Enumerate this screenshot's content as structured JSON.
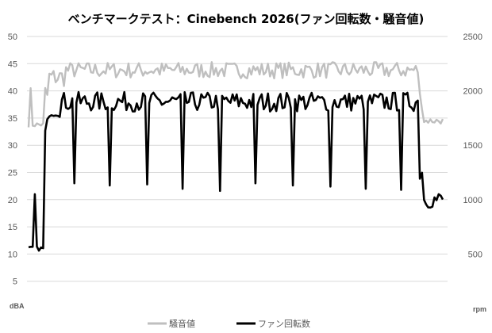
{
  "chart_data": {
    "type": "line",
    "title": "ベンチマークテスト：Cinebench 2026(ファン回転数・騒音値)",
    "y_left": {
      "unit": "dBA",
      "min": 0,
      "max": 50,
      "step": 5,
      "ticks": [
        "5",
        "10",
        "15",
        "20",
        "25",
        "30",
        "35",
        "40",
        "45",
        "50"
      ]
    },
    "y_right": {
      "unit": "rpm",
      "min": 0,
      "max": 2500,
      "step": 500,
      "ticks": [
        "500",
        "1000",
        "1500",
        "2000",
        "2500"
      ]
    },
    "grid": true,
    "legend_position": "bottom",
    "x_count": 200,
    "series": [
      {
        "name": "騒音値",
        "axis": "left",
        "color": "#bfbfbf",
        "segments": [
          {
            "from": 0,
            "to": 8,
            "value": 33.8,
            "jitter": 0.5
          },
          {
            "from": 8,
            "to": 10,
            "value": 39.0,
            "jitter": 3.0
          },
          {
            "from": 10,
            "to": 18,
            "value": 42.5,
            "jitter": 1.8
          },
          {
            "from": 18,
            "to": 188,
            "value": 43.8,
            "jitter": 1.5
          },
          {
            "from": 188,
            "to": 190,
            "value": 38.5,
            "jitter": 2.0
          },
          {
            "from": 190,
            "to": 200,
            "value": 34.5,
            "jitter": 0.6
          }
        ],
        "spikes": [
          {
            "index": 1,
            "value": 40.5
          }
        ]
      },
      {
        "name": "ファン回転数",
        "axis": "right",
        "color": "#000000",
        "segments": [
          {
            "from": 0,
            "to": 8,
            "value": 550,
            "jitter": 20
          },
          {
            "from": 8,
            "to": 10,
            "value": 1500,
            "jitter": 300
          },
          {
            "from": 10,
            "to": 16,
            "value": 1820,
            "jitter": 60
          },
          {
            "from": 16,
            "to": 188,
            "value": 1900,
            "jitter": 90
          },
          {
            "from": 188,
            "to": 190,
            "value": 1300,
            "jitter": 150
          },
          {
            "from": 190,
            "to": 200,
            "value": 1000,
            "jitter": 80
          }
        ],
        "spikes": [
          {
            "index": 3,
            "value": 1050
          },
          {
            "index": 22,
            "value": 1150
          },
          {
            "index": 39,
            "value": 1130
          },
          {
            "index": 57,
            "value": 1140
          },
          {
            "index": 74,
            "value": 1100
          },
          {
            "index": 92,
            "value": 1080
          },
          {
            "index": 109,
            "value": 1150
          },
          {
            "index": 127,
            "value": 1130
          },
          {
            "index": 145,
            "value": 1120
          },
          {
            "index": 162,
            "value": 1100
          },
          {
            "index": 179,
            "value": 1090
          }
        ]
      }
    ]
  }
}
